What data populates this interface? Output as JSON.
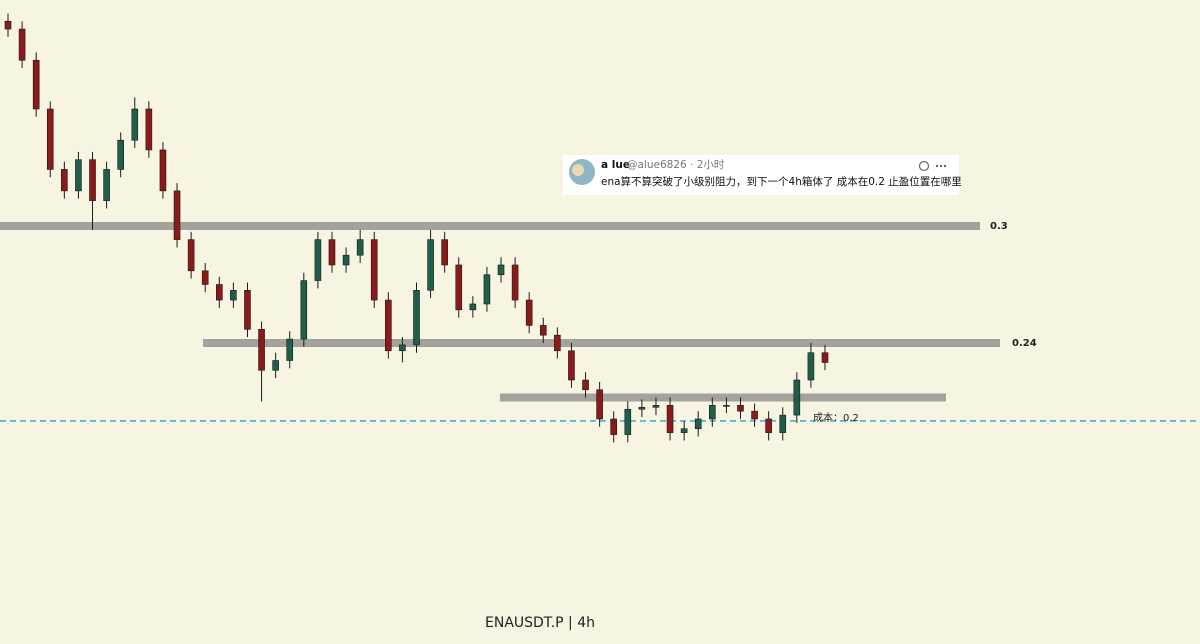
{
  "chart_data": {
    "type": "candlestick",
    "title": "ENAUSDT.P | 4h",
    "ylim": [
      0.0856,
      0.4159
    ],
    "up_color": "#1f5f4a",
    "down_color": "#8b1a1a",
    "level_color": "#a3a29d",
    "cost_color": "#2aa7c9",
    "open": [
      0.405,
      0.401,
      0.385,
      0.36,
      0.329,
      0.318,
      0.334,
      0.313,
      0.329,
      0.344,
      0.36,
      0.339,
      0.318,
      0.293,
      0.277,
      0.27,
      0.262,
      0.267,
      0.247,
      0.226,
      0.231,
      0.242,
      0.272,
      0.293,
      0.28,
      0.285,
      0.293,
      0.262,
      0.236,
      0.239,
      0.267,
      0.293,
      0.28,
      0.257,
      0.26,
      0.275,
      0.28,
      0.262,
      0.249,
      0.244,
      0.236,
      0.221,
      0.216,
      0.201,
      0.193,
      0.206,
      0.207,
      0.208,
      0.194,
      0.196,
      0.201,
      0.208,
      0.208,
      0.205,
      0.201,
      0.194,
      0.203,
      0.221,
      0.235
    ],
    "high": [
      0.409,
      0.405,
      0.389,
      0.364,
      0.333,
      0.338,
      0.338,
      0.333,
      0.348,
      0.366,
      0.364,
      0.343,
      0.322,
      0.297,
      0.281,
      0.274,
      0.271,
      0.271,
      0.251,
      0.235,
      0.246,
      0.276,
      0.297,
      0.297,
      0.289,
      0.298,
      0.297,
      0.266,
      0.243,
      0.271,
      0.298,
      0.297,
      0.284,
      0.264,
      0.279,
      0.284,
      0.284,
      0.266,
      0.253,
      0.248,
      0.24,
      0.225,
      0.22,
      0.205,
      0.21,
      0.211,
      0.212,
      0.212,
      0.2,
      0.205,
      0.212,
      0.212,
      0.212,
      0.209,
      0.205,
      0.207,
      0.225,
      0.24,
      0.239
    ],
    "low": [
      0.397,
      0.381,
      0.356,
      0.325,
      0.314,
      0.314,
      0.298,
      0.309,
      0.325,
      0.34,
      0.335,
      0.314,
      0.289,
      0.273,
      0.266,
      0.258,
      0.258,
      0.243,
      0.21,
      0.222,
      0.227,
      0.238,
      0.268,
      0.276,
      0.276,
      0.281,
      0.258,
      0.232,
      0.23,
      0.235,
      0.263,
      0.276,
      0.253,
      0.253,
      0.256,
      0.271,
      0.258,
      0.245,
      0.24,
      0.232,
      0.217,
      0.212,
      0.197,
      0.189,
      0.189,
      0.202,
      0.203,
      0.19,
      0.19,
      0.192,
      0.197,
      0.204,
      0.201,
      0.197,
      0.19,
      0.19,
      0.199,
      0.217,
      0.226
    ],
    "close": [
      0.401,
      0.385,
      0.36,
      0.329,
      0.318,
      0.334,
      0.313,
      0.329,
      0.344,
      0.36,
      0.339,
      0.318,
      0.293,
      0.277,
      0.27,
      0.262,
      0.267,
      0.247,
      0.226,
      0.231,
      0.242,
      0.272,
      0.293,
      0.28,
      0.285,
      0.293,
      0.262,
      0.236,
      0.239,
      0.267,
      0.293,
      0.28,
      0.257,
      0.26,
      0.275,
      0.28,
      0.262,
      0.249,
      0.244,
      0.236,
      0.221,
      0.216,
      0.201,
      0.193,
      0.206,
      0.207,
      0.208,
      0.194,
      0.196,
      0.201,
      0.208,
      0.208,
      0.205,
      0.201,
      0.194,
      0.203,
      0.221,
      0.235,
      0.23
    ],
    "levels": [
      0.3,
      0.24,
      0.212
    ],
    "cost_line": {
      "value": 0.2,
      "label": "成本：0.2"
    }
  },
  "comment": {
    "name": "a lue",
    "handle_line": "@alue6826 · 2小时",
    "text": "ena算不算突破了小级别阻力，到下一个4h箱体了 成本在0.2 止盈位置在哪里"
  }
}
